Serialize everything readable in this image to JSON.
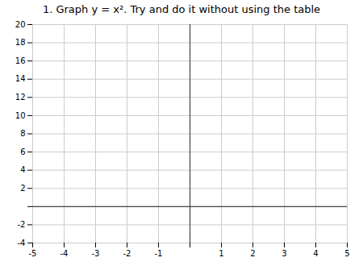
{
  "chart_data": {
    "type": "line",
    "title": "1. Graph y = x². Try and do it without using the table",
    "xlim": [
      -5,
      5
    ],
    "ylim": [
      -4,
      20
    ],
    "xticks": [
      -5,
      -4,
      -3,
      -2,
      -1,
      {
        "value": 0,
        "label": null
      },
      1,
      2,
      3,
      4,
      5
    ],
    "yticks": [
      -4,
      -2,
      {
        "value": 0,
        "label": null
      },
      2,
      4,
      6,
      8,
      10,
      12,
      14,
      16,
      18,
      20
    ],
    "grid": true
  }
}
